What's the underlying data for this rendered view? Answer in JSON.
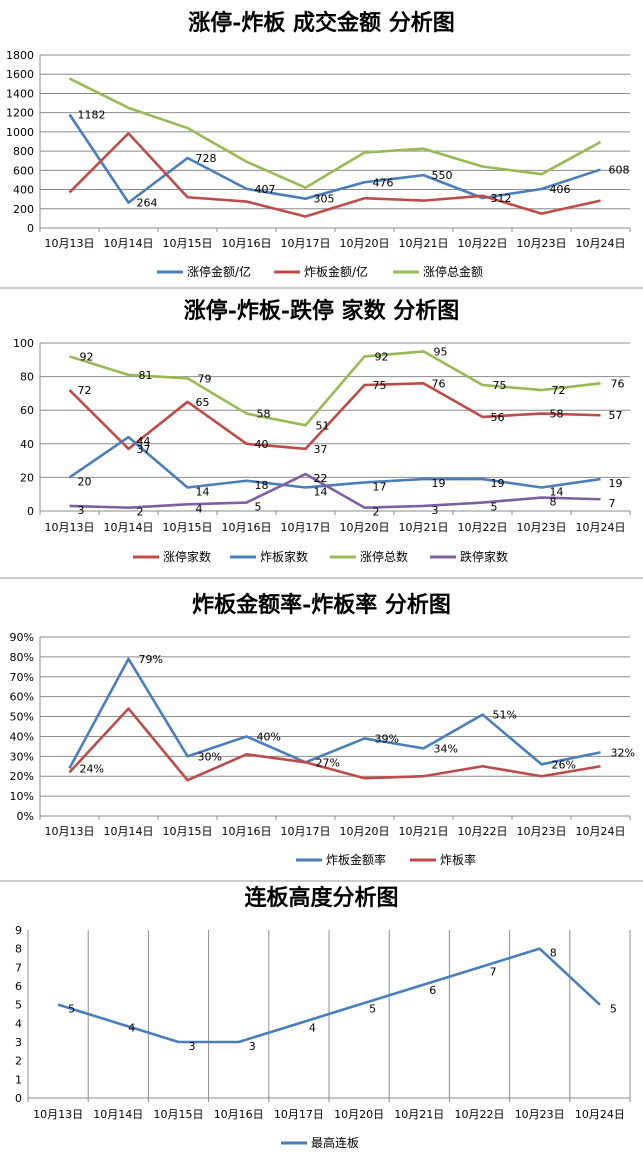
{
  "chart_data": [
    {
      "type": "line",
      "title": "涨停-炸板 成交金额 分析图",
      "categories": [
        "10月13日",
        "10月14日",
        "10月15日",
        "10月16日",
        "10月17日",
        "10月20日",
        "10月21日",
        "10月22日",
        "10月23日",
        "10月24日"
      ],
      "ylim": [
        0,
        1800
      ],
      "yticks": [
        0,
        200,
        400,
        600,
        800,
        1000,
        1200,
        1400,
        1600,
        1800
      ],
      "ytick_labels": [
        "0",
        "200",
        "400",
        "600",
        "800",
        "1000",
        "1200",
        "1400",
        "1600",
        "1800"
      ],
      "grid": "horizontal",
      "legend": "bottom",
      "series": [
        {
          "name": "涨停金额/亿",
          "color": "#4a7ebb",
          "values": [
            1182,
            264,
            728,
            407,
            305,
            476,
            550,
            312,
            406,
            608
          ],
          "labels": [
            "1182",
            "264",
            "728",
            "407",
            "305",
            "476",
            "550",
            "312",
            "406",
            "608"
          ]
        },
        {
          "name": "炸板金额/亿",
          "color": "#be4b48",
          "values": [
            370,
            985,
            320,
            275,
            120,
            310,
            285,
            335,
            150,
            285
          ]
        },
        {
          "name": "涨停总金额",
          "color": "#98b954",
          "values": [
            1555,
            1250,
            1040,
            690,
            420,
            785,
            825,
            640,
            560,
            895
          ]
        }
      ]
    },
    {
      "type": "line",
      "title": "涨停-炸板-跌停 家数 分析图",
      "categories": [
        "10月13日",
        "10月14日",
        "10月15日",
        "10月16日",
        "10月17日",
        "10月20日",
        "10月21日",
        "10月22日",
        "10月23日",
        "10月24日"
      ],
      "ylim": [
        0,
        100
      ],
      "yticks": [
        0,
        20,
        40,
        60,
        80,
        100
      ],
      "ytick_labels": [
        "0",
        "20",
        "40",
        "60",
        "80",
        "100"
      ],
      "grid": "horizontal",
      "legend": "bottom",
      "series": [
        {
          "name": "涨停家数",
          "color": "#be4b48",
          "values": [
            72,
            37,
            65,
            40,
            37,
            75,
            76,
            56,
            58,
            57
          ],
          "labels": [
            "72",
            "37",
            "65",
            "40",
            "37",
            "75",
            "76",
            "56",
            "58",
            "57"
          ]
        },
        {
          "name": "炸板家数",
          "color": "#4a7ebb",
          "values": [
            20,
            44,
            14,
            18,
            14,
            17,
            19,
            19,
            14,
            19
          ],
          "labels": [
            "20",
            "44",
            "14",
            "18",
            "14",
            "17",
            "19",
            "19",
            "14",
            "19"
          ]
        },
        {
          "name": "涨停总数",
          "color": "#98b954",
          "values": [
            92,
            81,
            79,
            58,
            51,
            92,
            95,
            75,
            72,
            76
          ],
          "labels": [
            "92",
            "81",
            "79",
            "58",
            "51",
            "92",
            "95",
            "75",
            "72",
            "76"
          ]
        },
        {
          "name": "跌停家数",
          "color": "#7d60a0",
          "values": [
            3,
            2,
            4,
            5,
            22,
            2,
            3,
            5,
            8,
            7
          ],
          "labels": [
            "3",
            "2",
            "4",
            "5",
            "22",
            "2",
            "3",
            "5",
            "8",
            "7"
          ]
        }
      ]
    },
    {
      "type": "line",
      "title": "炸板金额率-炸板率 分析图",
      "categories": [
        "10月13日",
        "10月14日",
        "10月15日",
        "10月16日",
        "10月17日",
        "10月20日",
        "10月21日",
        "10月22日",
        "10月23日",
        "10月24日"
      ],
      "ylim": [
        0,
        90
      ],
      "yticks": [
        0,
        10,
        20,
        30,
        40,
        50,
        60,
        70,
        80,
        90
      ],
      "ytick_labels": [
        "0%",
        "10%",
        "20%",
        "30%",
        "40%",
        "50%",
        "60%",
        "70%",
        "80%",
        "90%"
      ],
      "grid": "horizontal",
      "legend": "bottom",
      "series": [
        {
          "name": "炸板金额率",
          "color": "#4a7ebb",
          "values": [
            24,
            79,
            30,
            40,
            27,
            39,
            34,
            51,
            26,
            32
          ],
          "labels": [
            "24%",
            "79%",
            "30%",
            "40%",
            "27%",
            "39%",
            "34%",
            "51%",
            "26%",
            "32%"
          ]
        },
        {
          "name": "炸板率",
          "color": "#be4b48",
          "values": [
            22,
            54,
            18,
            31,
            27,
            19,
            20,
            25,
            20,
            25
          ]
        }
      ]
    },
    {
      "type": "line",
      "title": "连板高度分析图",
      "categories": [
        "10月13日",
        "10月14日",
        "10月15日",
        "10月16日",
        "10月17日",
        "10月20日",
        "10月21日",
        "10月22日",
        "10月23日",
        "10月24日"
      ],
      "ylim": [
        0,
        9
      ],
      "yticks": [
        0,
        1,
        2,
        3,
        4,
        5,
        6,
        7,
        8,
        9
      ],
      "ytick_labels": [
        "0",
        "1",
        "2",
        "3",
        "4",
        "5",
        "6",
        "7",
        "8",
        "9"
      ],
      "grid": "vertical",
      "legend": "bottom",
      "series": [
        {
          "name": "最高连板",
          "color": "#4a7ebb",
          "values": [
            5,
            4,
            3,
            3,
            4,
            5,
            6,
            7,
            8,
            5
          ],
          "labels": [
            "5",
            "4",
            "3",
            "3",
            "4",
            "5",
            "6",
            "7",
            "8",
            "5"
          ]
        }
      ]
    }
  ]
}
